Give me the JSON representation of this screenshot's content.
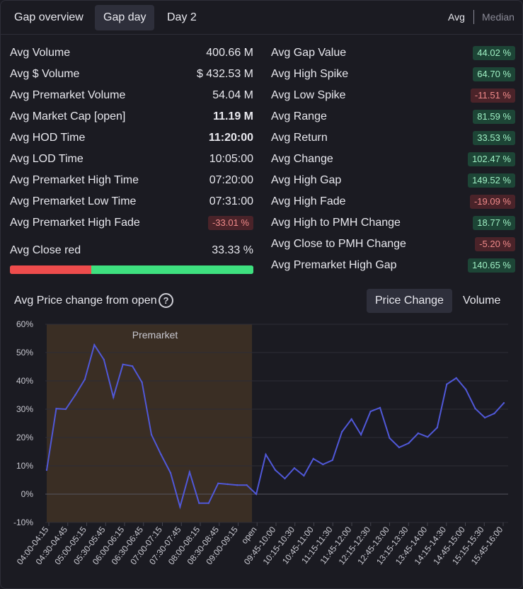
{
  "tabs": [
    "Gap overview",
    "Gap day",
    "Day 2"
  ],
  "active_tab": "Gap day",
  "modes": {
    "avg": "Avg",
    "median": "Median"
  },
  "left_stats": [
    {
      "label": "Avg Volume",
      "value": "400.66 M",
      "bold": false
    },
    {
      "label": "Avg $ Volume",
      "value": "$ 432.53 M",
      "bold": false
    },
    {
      "label": "Avg Premarket Volume",
      "value": "54.04 M",
      "bold": false
    },
    {
      "label": "Avg Market Cap [open]",
      "value": "11.19 M",
      "bold": true
    },
    {
      "label": "Avg HOD Time",
      "value": "11:20:00",
      "bold": true
    },
    {
      "label": "Avg LOD Time",
      "value": "10:05:00",
      "bold": false
    },
    {
      "label": "Avg Premarket High Time",
      "value": "07:20:00",
      "bold": false
    },
    {
      "label": "Avg Premarket Low Time",
      "value": "07:31:00",
      "bold": false
    }
  ],
  "premarket_high_fade": {
    "label": "Avg Premarket High Fade",
    "value": "-33.01 %"
  },
  "close_red": {
    "label": "Avg Close red",
    "value": "33.33 %",
    "fraction": 0.3333
  },
  "right_stats": [
    {
      "label": "Avg Gap Value",
      "value": "44.02 %",
      "sign": "pos"
    },
    {
      "label": "Avg High Spike",
      "value": "64.70 %",
      "sign": "pos"
    },
    {
      "label": "Avg Low Spike",
      "value": "-11.51 %",
      "sign": "neg"
    },
    {
      "label": "Avg Range",
      "value": "81.59 %",
      "sign": "pos"
    },
    {
      "label": "Avg Return",
      "value": "33.53 %",
      "sign": "pos"
    },
    {
      "label": "Avg Change",
      "value": "102.47 %",
      "sign": "pos"
    },
    {
      "label": "Avg High Gap",
      "value": "149.52 %",
      "sign": "pos"
    },
    {
      "label": "Avg High Fade",
      "value": "-19.09 %",
      "sign": "neg"
    },
    {
      "label": "Avg High to PMH Change",
      "value": "18.77 %",
      "sign": "pos"
    },
    {
      "label": "Avg Close to PMH Change",
      "value": "-5.20 %",
      "sign": "neg"
    },
    {
      "label": "Avg Premarket High Gap",
      "value": "140.65 %",
      "sign": "pos"
    }
  ],
  "chart_header": {
    "title": "Avg Price change from open",
    "help_icon": "?",
    "tabs": [
      "Price Change",
      "Volume"
    ],
    "active_tab": "Price Change"
  },
  "colors": {
    "line": "#5058d8",
    "premarket_shade": "#3a2e24",
    "positive": "#9ff0c4",
    "negative": "#f08a8a",
    "bar_red": "#ee4c4c",
    "bar_green": "#3ee07f"
  },
  "chart_data": {
    "type": "line",
    "title": "Avg Price change from open",
    "xlabel": "",
    "ylabel": "",
    "ylim": [
      -10,
      60
    ],
    "y_ticks": [
      "60%",
      "50%",
      "40%",
      "30%",
      "20%",
      "10%",
      "0%",
      "-10%"
    ],
    "y_tick_values": [
      60,
      50,
      40,
      30,
      20,
      10,
      0,
      -10
    ],
    "grid": true,
    "shaded_region": {
      "label": "Premarket",
      "from_index": 0,
      "to_index": 22
    },
    "x_labels": [
      "04:00-04:15",
      "04:30-04:45",
      "05:00-05:15",
      "05:30-05:45",
      "06:00-06:15",
      "06:30-06:45",
      "07:00-07:15",
      "07:30-07:45",
      "08:00-08:15",
      "08:30-08:45",
      "09:00-09:15",
      "open",
      "09:45-10:00",
      "10:15-10:30",
      "10:45-11:00",
      "11:15-11:30",
      "11:45-12:00",
      "12:15-12:30",
      "12:45-13:00",
      "13:15-13:30",
      "13:45-14:00",
      "14:15-14:30",
      "14:45-15:00",
      "15:15-15:30",
      "15:45-16:00"
    ],
    "series": [
      {
        "name": "Avg Price change from open",
        "values": [
          8.5,
          30.2,
          30.0,
          35.0,
          40.5,
          52.7,
          47.5,
          34.2,
          45.8,
          45.2,
          39.5,
          21.0,
          14.0,
          7.5,
          -4.5,
          7.8,
          -3.2,
          -3.2,
          3.8,
          3.5,
          3.2,
          3.2,
          0.0,
          14.0,
          8.5,
          5.5,
          9.2,
          6.5,
          12.5,
          10.5,
          12.0,
          22.0,
          26.5,
          21.0,
          29.2,
          30.5,
          19.8,
          16.5,
          18.0,
          21.5,
          20.2,
          23.5,
          38.8,
          41.0,
          37.0,
          30.2,
          27.0,
          28.5,
          32.2
        ]
      }
    ]
  }
}
